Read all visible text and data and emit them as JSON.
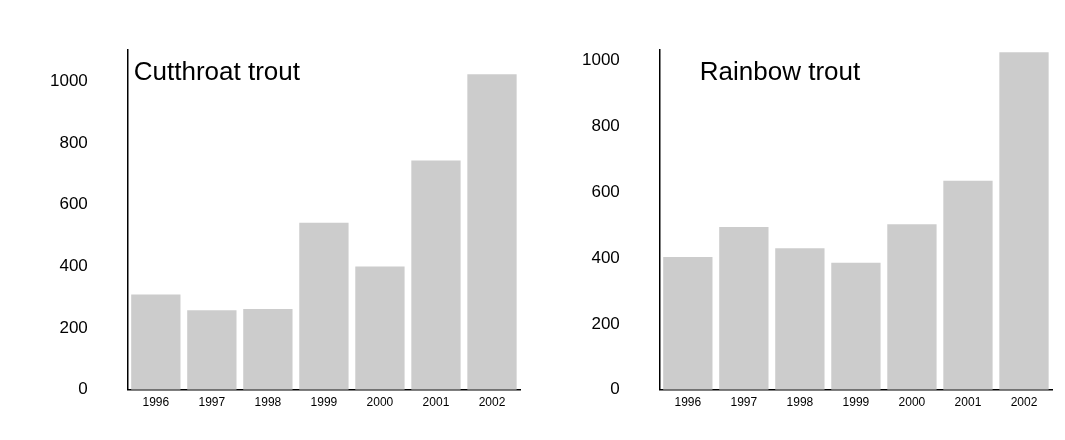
{
  "chart_data": [
    {
      "type": "bar",
      "title": "Cutthroat trout",
      "categories": [
        "1996",
        "1997",
        "1998",
        "1999",
        "2000",
        "2001",
        "2002"
      ],
      "values": [
        309,
        258,
        262,
        541,
        399,
        743,
        1022
      ],
      "color": "#cccccc",
      "ylim": [
        0,
        1100
      ],
      "yticks": [
        0,
        200,
        400,
        600,
        800,
        1000
      ],
      "grid": false,
      "legend": false
    },
    {
      "type": "bar",
      "title": "Rainbow trout",
      "categories": [
        "1996",
        "1997",
        "1998",
        "1999",
        "2000",
        "2001",
        "2002"
      ],
      "values": [
        403,
        494,
        429,
        385,
        502,
        634,
        1024
      ],
      "color": "#cccccc",
      "ylim": [
        0,
        1030
      ],
      "yticks": [
        0,
        200,
        400,
        600,
        800,
        1000
      ],
      "grid": false,
      "legend": false
    }
  ]
}
